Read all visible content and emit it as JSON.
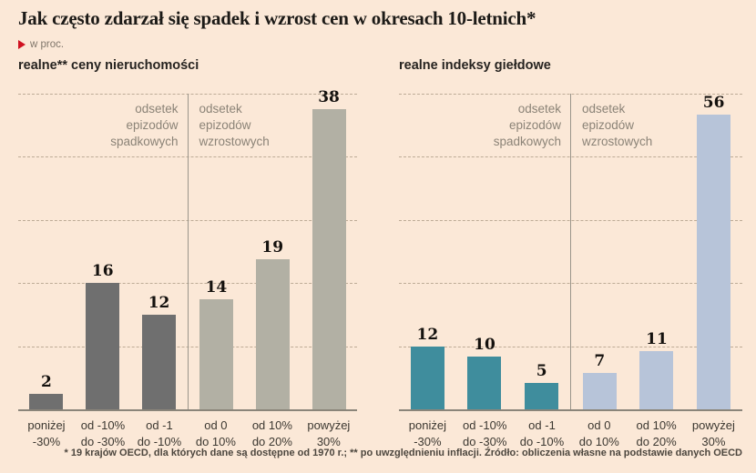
{
  "title": "Jak często zdarzał się spadek i wzrost cen w okresach 10-letnich*",
  "unit_label": "w proc.",
  "footnote": "* 19 krajów OECD, dla których dane są dostępne od 1970 r.; ** po uwzględnieniu inflacji. Źródło: obliczenia własne na podstawie danych OECD",
  "colors": {
    "background": "#fbe8d7",
    "accent_red": "#d01120",
    "property_decline_bar": "#6f6f6f",
    "property_growth_bar": "#b2b0a4",
    "stocks_decline_bar": "#3f8d9d",
    "stocks_growth_bar": "#b7c4d9",
    "gridline": "#bdab96",
    "axis": "#8b857a",
    "section_label_text": "#8b8377"
  },
  "chart_data": [
    {
      "type": "bar",
      "title": "realne** ceny nieruchomości",
      "section_labels": [
        "odsetek\nepizodów\nspadkowych",
        "odsetek\nepizodów\nwzrostowych"
      ],
      "categories": [
        "poniżej\n-30%",
        "od -10%\ndo -30%",
        "od -1\ndo -10%",
        "od 0\ndo 10%",
        "od 10%\ndo 20%",
        "powyżej\n30%"
      ],
      "values": [
        2,
        16,
        12,
        14,
        19,
        38
      ],
      "bar_colors": [
        "#6f6f6f",
        "#b2b0a4"
      ],
      "ylim": [
        0,
        40
      ],
      "unit": "proc.",
      "grid": "dashed-horizontal",
      "legend": "none"
    },
    {
      "type": "bar",
      "title": "realne indeksy giełdowe",
      "section_labels": [
        "odsetek\nepizodów\nspadkowych",
        "odsetek\nepizodów\nwzrostowych"
      ],
      "categories": [
        "poniżej\n-30%",
        "od -10%\ndo -30%",
        "od -1\ndo -10%",
        "od 0\ndo 10%",
        "od 10%\ndo 20%",
        "powyżej\n30%"
      ],
      "values": [
        12,
        10,
        5,
        7,
        11,
        56
      ],
      "bar_colors": [
        "#3f8d9d",
        "#b7c4d9"
      ],
      "ylim": [
        0,
        60
      ],
      "unit": "proc.",
      "grid": "dashed-horizontal",
      "legend": "none"
    }
  ]
}
